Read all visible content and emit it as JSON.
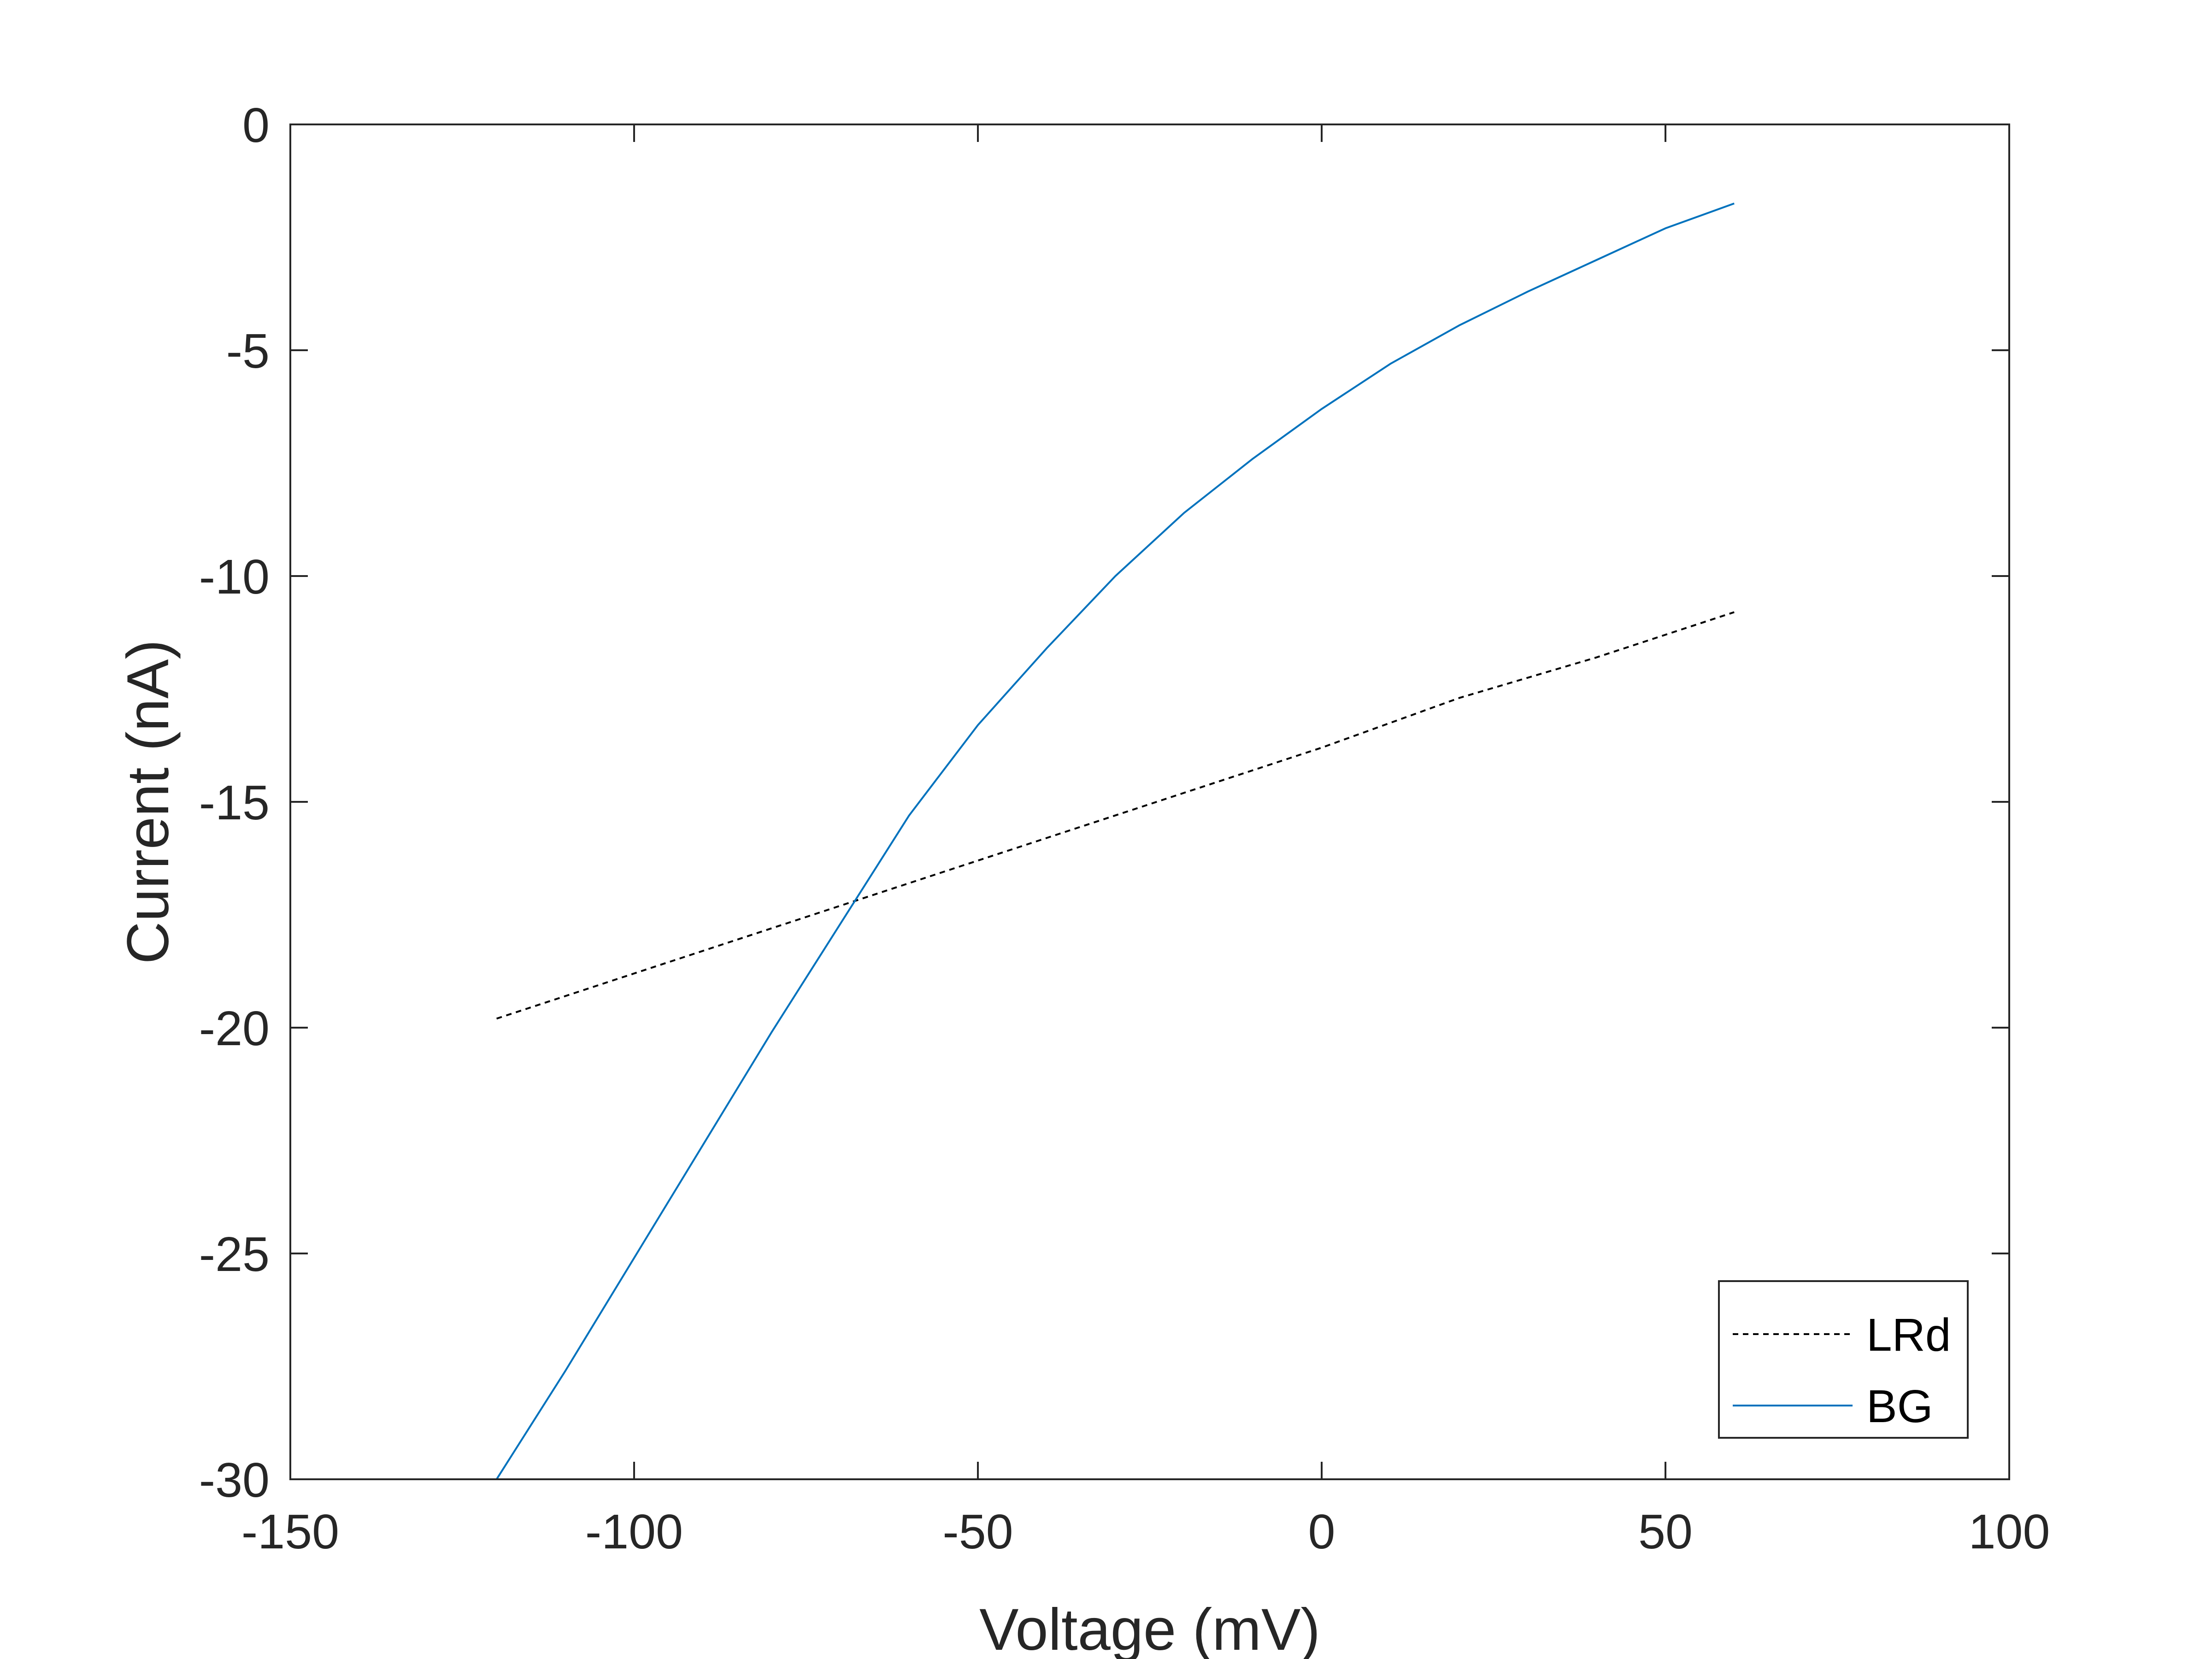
{
  "chart_data": {
    "type": "line",
    "xlabel": "Voltage (mV)",
    "ylabel": "Current (nA)",
    "xlim": [
      -150,
      100
    ],
    "ylim": [
      -30,
      0
    ],
    "xticks": [
      -150,
      -100,
      -50,
      0,
      50,
      100
    ],
    "yticks": [
      0,
      -5,
      -10,
      -15,
      -20,
      -25,
      -30
    ],
    "grid": false,
    "legend_position": "bottom-right",
    "series": [
      {
        "name": "LRd",
        "style": "dotted",
        "color": "#000000",
        "x": [
          -120,
          -100,
          -80,
          -60,
          -40,
          -20,
          0,
          20,
          40,
          60
        ],
        "y": [
          -19.8,
          -18.8,
          -17.8,
          -16.8,
          -15.8,
          -14.8,
          -13.8,
          -12.7,
          -11.8,
          -10.8
        ]
      },
      {
        "name": "BG",
        "style": "solid",
        "color": "#0072BD",
        "x": [
          -120,
          -110,
          -100,
          -90,
          -80,
          -70,
          -60,
          -50,
          -40,
          -30,
          -20,
          -10,
          0,
          10,
          20,
          30,
          40,
          50,
          60
        ],
        "y": [
          -30.0,
          -27.6,
          -25.1,
          -22.6,
          -20.1,
          -17.7,
          -15.3,
          -13.3,
          -11.6,
          -10.0,
          -8.6,
          -7.4,
          -6.3,
          -5.3,
          -4.45,
          -3.7,
          -3.0,
          -2.3,
          -1.75
        ]
      }
    ]
  }
}
